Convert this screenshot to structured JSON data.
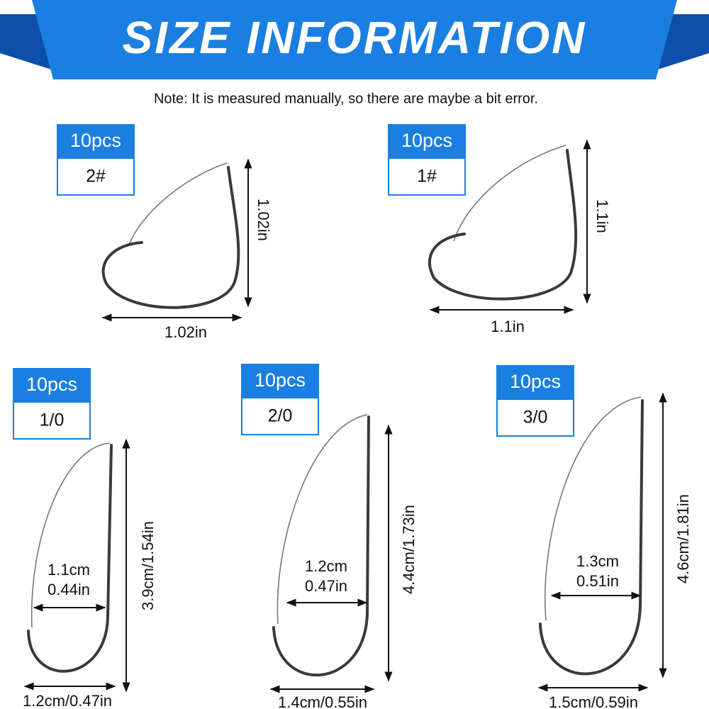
{
  "header": {
    "title": "SIZE INFORMATION",
    "note": "Note: It is measured manually, so there are maybe a bit error."
  },
  "items": [
    {
      "quantity": "10pcs",
      "size": "2#",
      "height": "1.02in",
      "width": "1.02in"
    },
    {
      "quantity": "10pcs",
      "size": "1#",
      "height": "1.1in",
      "width": "1.1in"
    },
    {
      "quantity": "10pcs",
      "size": "1/0",
      "gap_cm": "1.1cm",
      "gap_in": "0.44in",
      "height": "3.9cm/1.54in",
      "width": "1.2cm/0.47in"
    },
    {
      "quantity": "10pcs",
      "size": "2/0",
      "gap_cm": "1.2cm",
      "gap_in": "0.47in",
      "height": "4.4cm/1.73in",
      "width": "1.4cm/0.55in"
    },
    {
      "quantity": "10pcs",
      "size": "3/0",
      "gap_cm": "1.3cm",
      "gap_in": "0.51in",
      "height": "4.6cm/1.81in",
      "width": "1.5cm/0.59in"
    }
  ]
}
